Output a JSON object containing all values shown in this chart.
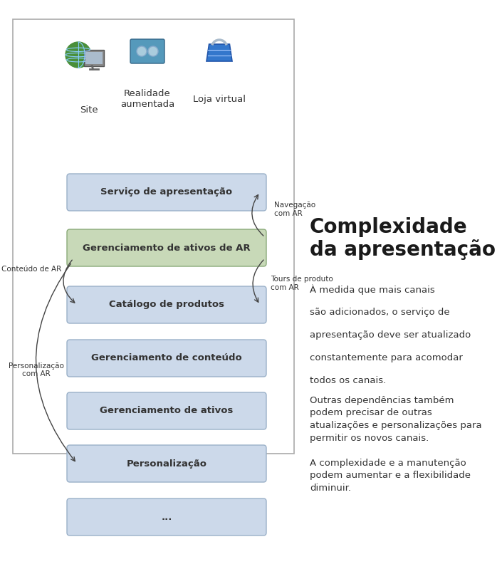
{
  "title": "Complexidade\nda apresentação",
  "title_fontsize": 20,
  "bg_color": "#ffffff",
  "box_color_blue": "#ccd9ea",
  "box_color_green": "#c8d9b8",
  "box_border_blue": "#9ab0c8",
  "box_border_green": "#8aaa78",
  "text_color": "#333333",
  "boxes": [
    {
      "label": "Serviço de apresentação",
      "color": "blue"
    },
    {
      "label": "Gerenciamento de ativos de AR",
      "color": "green"
    },
    {
      "label": "Catálogo de produtos",
      "color": "blue"
    },
    {
      "label": "Gerenciamento de conteúdo",
      "color": "blue"
    },
    {
      "label": "Gerenciamento de ativos",
      "color": "blue"
    },
    {
      "label": "Personalização",
      "color": "blue"
    },
    {
      "label": "...",
      "color": "blue"
    }
  ],
  "channel_labels": [
    "Site",
    "Realidade\naumentada",
    "Loja virtual"
  ],
  "para1_lines": [
    "À medida que mais canais",
    "",
    "são adicionados, o serviço de",
    "",
    "apresentação deve ser atualizado",
    "",
    "constantemente para acomodar",
    "",
    "todos os canais."
  ],
  "para2": "Outras dependências também\npodem precisar de outras\natualizações e personalizações para\npermitir os novos canais.",
  "para3": "A complexidade e a manutenção\npodem aumentar e a flexibilidade\ndiminuir.",
  "frame_color": "#aaaaaa",
  "arrow_color": "#444444"
}
